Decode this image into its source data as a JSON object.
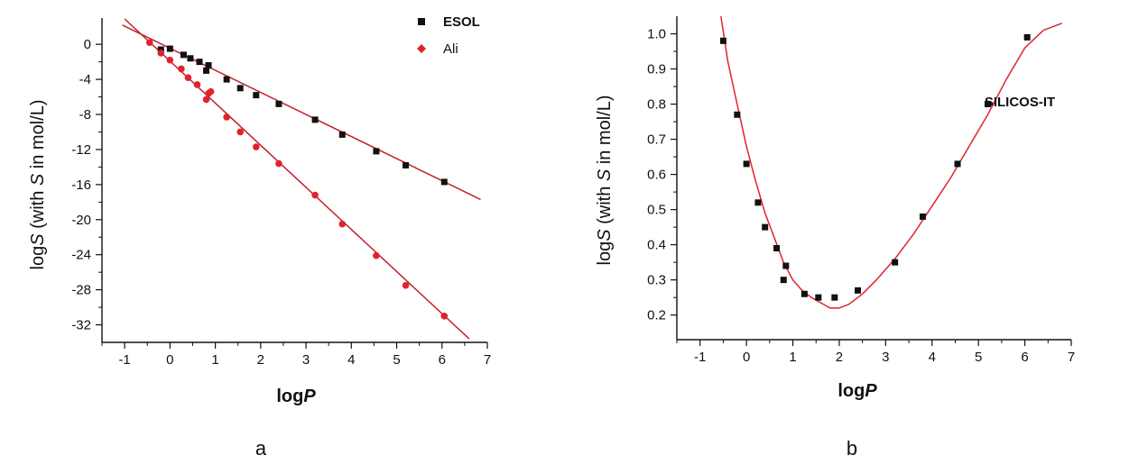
{
  "chart_data": [
    {
      "type": "scatter",
      "panel_label": "a",
      "xlabel": {
        "base": "log",
        "italic": "P"
      },
      "ylabel": {
        "prefix": "log",
        "var1": "S",
        "mid": " (with ",
        "var2": "S",
        "suffix": " in mol/L)"
      },
      "xlim": [
        -1.5,
        7
      ],
      "ylim": [
        -34,
        3
      ],
      "xticks": [
        -1,
        0,
        1,
        2,
        3,
        4,
        5,
        6,
        7
      ],
      "yticks": [
        0,
        -4,
        -8,
        -12,
        -16,
        -20,
        -24,
        -28,
        -32
      ],
      "legend_position": "top-right",
      "grid": false,
      "series": [
        {
          "name": "ESOL",
          "marker": "square",
          "color": "#111111",
          "points": [
            [
              -0.2,
              -0.6
            ],
            [
              0.0,
              -0.5
            ],
            [
              0.3,
              -1.2
            ],
            [
              0.45,
              -1.6
            ],
            [
              0.65,
              -2.0
            ],
            [
              0.8,
              -3.0
            ],
            [
              0.85,
              -2.4
            ],
            [
              1.25,
              -4.0
            ],
            [
              1.55,
              -5.0
            ],
            [
              1.9,
              -5.8
            ],
            [
              2.4,
              -6.8
            ],
            [
              3.2,
              -8.6
            ],
            [
              3.8,
              -10.3
            ],
            [
              4.55,
              -12.2
            ],
            [
              5.2,
              -13.8
            ],
            [
              6.05,
              -15.7
            ]
          ],
          "fit": {
            "color": "#c0202a",
            "x": [
              -1.05,
              6.85
            ],
            "y": [
              2.2,
              -17.7
            ]
          }
        },
        {
          "name": "Ali",
          "marker": "diamond",
          "color": "#e0232b",
          "points": [
            [
              -0.45,
              0.2
            ],
            [
              -0.2,
              -1.0
            ],
            [
              0.0,
              -1.8
            ],
            [
              0.25,
              -2.8
            ],
            [
              0.4,
              -3.8
            ],
            [
              0.6,
              -4.6
            ],
            [
              0.8,
              -6.3
            ],
            [
              0.85,
              -5.6
            ],
            [
              0.9,
              -5.4
            ],
            [
              1.25,
              -8.3
            ],
            [
              1.55,
              -10.0
            ],
            [
              1.9,
              -11.7
            ],
            [
              2.4,
              -13.6
            ],
            [
              3.2,
              -17.2
            ],
            [
              3.8,
              -20.5
            ],
            [
              4.55,
              -24.1
            ],
            [
              5.2,
              -27.5
            ],
            [
              6.05,
              -31.0
            ]
          ],
          "fit": {
            "color": "#c0202a",
            "x": [
              -1.0,
              6.6
            ],
            "y": [
              2.9,
              -33.6
            ]
          }
        }
      ]
    },
    {
      "type": "scatter",
      "panel_label": "b",
      "xlabel": {
        "base": "log",
        "italic": "P"
      },
      "ylabel": {
        "prefix": "log",
        "var1": "S",
        "mid": " (with ",
        "var2": "S",
        "suffix": " in mol/L)"
      },
      "annotation": "SILICOS-IT",
      "xlim": [
        -1.5,
        7
      ],
      "ylim": [
        0.13,
        1.05
      ],
      "xticks": [
        -1,
        0,
        1,
        2,
        3,
        4,
        5,
        6,
        7
      ],
      "yticks": [
        1.0,
        0.9,
        0.8,
        0.7,
        0.6,
        0.5,
        0.4,
        0.3,
        0.2
      ],
      "grid": false,
      "series": [
        {
          "name": "",
          "marker": "square",
          "color": "#111111",
          "points": [
            [
              -0.5,
              0.98
            ],
            [
              -0.2,
              0.77
            ],
            [
              0.0,
              0.63
            ],
            [
              0.25,
              0.52
            ],
            [
              0.4,
              0.45
            ],
            [
              0.65,
              0.39
            ],
            [
              0.8,
              0.3
            ],
            [
              0.85,
              0.34
            ],
            [
              1.25,
              0.26
            ],
            [
              1.55,
              0.25
            ],
            [
              1.9,
              0.25
            ],
            [
              2.4,
              0.27
            ],
            [
              3.2,
              0.35
            ],
            [
              3.8,
              0.48
            ],
            [
              4.55,
              0.63
            ],
            [
              5.2,
              0.8
            ],
            [
              6.05,
              0.99
            ]
          ],
          "fit": {
            "color": "#e0232b",
            "x": [
              -0.55,
              -0.4,
              -0.2,
              0.0,
              0.2,
              0.4,
              0.6,
              0.8,
              1.0,
              1.2,
              1.4,
              1.6,
              1.8,
              2.0,
              2.2,
              2.5,
              2.8,
              3.2,
              3.6,
              4.0,
              4.4,
              4.8,
              5.2,
              5.6,
              6.0,
              6.4,
              6.8
            ],
            "y": [
              1.05,
              0.92,
              0.8,
              0.68,
              0.58,
              0.49,
              0.42,
              0.35,
              0.3,
              0.27,
              0.25,
              0.235,
              0.22,
              0.22,
              0.23,
              0.26,
              0.3,
              0.36,
              0.43,
              0.51,
              0.59,
              0.68,
              0.77,
              0.87,
              0.96,
              1.01,
              1.03
            ]
          }
        }
      ]
    }
  ]
}
